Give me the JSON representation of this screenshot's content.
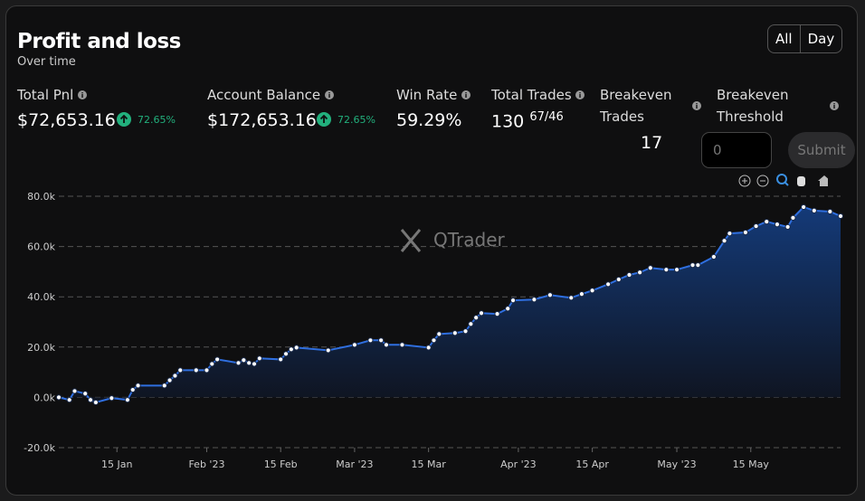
{
  "header": {
    "title": "Profit and loss",
    "subtitle": "Over time",
    "buttons": [
      "All",
      "Day"
    ]
  },
  "stats": [
    {
      "label": "Total Pnl",
      "value": "$72,653.16",
      "change": "72.65%"
    },
    {
      "label": "Account Balance",
      "value": "$172,653.16",
      "change": "72.65%"
    },
    {
      "label": "Win Rate",
      "value": "59.29%"
    },
    {
      "label": "Total Trades",
      "value": "130",
      "detail": "67/46"
    },
    {
      "label": "Breakeven Trades",
      "value": "17"
    },
    {
      "label": "Breakeven Threshold",
      "placeholder": "0",
      "button": "Submit"
    }
  ],
  "chart_data": {
    "type": "area",
    "watermark": "QTrader",
    "color": "#2f6fe0",
    "grid": true,
    "x": [
      "2023-01-04",
      "2023-01-06",
      "2023-01-07",
      "2023-01-09",
      "2023-01-10",
      "2023-01-11",
      "2023-01-14",
      "2023-01-17",
      "2023-01-18",
      "2023-01-19",
      "2023-01-24",
      "2023-01-25",
      "2023-01-26",
      "2023-01-27",
      "2023-01-30",
      "2023-02-01",
      "2023-02-02",
      "2023-02-03",
      "2023-02-07",
      "2023-02-08",
      "2023-02-09",
      "2023-02-10",
      "2023-02-11",
      "2023-02-15",
      "2023-02-16",
      "2023-02-17",
      "2023-02-18",
      "2023-02-24",
      "2023-03-01",
      "2023-03-04",
      "2023-03-06",
      "2023-03-07",
      "2023-03-10",
      "2023-03-15",
      "2023-03-16",
      "2023-03-17",
      "2023-03-20",
      "2023-03-22",
      "2023-03-23",
      "2023-03-24",
      "2023-03-25",
      "2023-03-28",
      "2023-03-30",
      "2023-03-31",
      "2023-04-04",
      "2023-04-07",
      "2023-04-11",
      "2023-04-13",
      "2023-04-15",
      "2023-04-18",
      "2023-04-20",
      "2023-04-22",
      "2023-04-24",
      "2023-04-26",
      "2023-04-29",
      "2023-05-01",
      "2023-05-04",
      "2023-05-05",
      "2023-05-08",
      "2023-05-10",
      "2023-05-11",
      "2023-05-14",
      "2023-05-16",
      "2023-05-18",
      "2023-05-20",
      "2023-05-22",
      "2023-05-23",
      "2023-05-25",
      "2023-05-27",
      "2023-05-30",
      "2023-06-01"
    ],
    "values": [
      0,
      -1000,
      2500,
      1500,
      -1000,
      -2000,
      -300,
      -1000,
      3000,
      4700,
      4700,
      6800,
      8600,
      10800,
      10800,
      10800,
      13300,
      15100,
      13700,
      14800,
      13700,
      13300,
      15500,
      15100,
      17300,
      19100,
      19800,
      18700,
      20900,
      22700,
      22700,
      20900,
      20900,
      19800,
      22700,
      25200,
      25600,
      26300,
      29200,
      31700,
      33500,
      33200,
      35300,
      38600,
      38900,
      40700,
      39600,
      41100,
      42500,
      45000,
      46900,
      48700,
      49700,
      51500,
      50800,
      50800,
      52600,
      52600,
      55900,
      62300,
      65200,
      65600,
      68100,
      69900,
      68800,
      67800,
      71400,
      75700,
      74300,
      73900,
      72100
    ],
    "xlim": [
      "2023-01-04",
      "2023-06-01"
    ],
    "xticks": [
      {
        "value": "2023-01-15",
        "label": "15 Jan"
      },
      {
        "value": "2023-02-01",
        "label": "Feb '23"
      },
      {
        "value": "2023-02-15",
        "label": "15 Feb"
      },
      {
        "value": "2023-03-01",
        "label": "Mar '23"
      },
      {
        "value": "2023-03-15",
        "label": "15 Mar"
      },
      {
        "value": "2023-04-01",
        "label": "Apr '23"
      },
      {
        "value": "2023-04-15",
        "label": "15 Apr"
      },
      {
        "value": "2023-05-01",
        "label": "May '23"
      },
      {
        "value": "2023-05-15",
        "label": "15 May"
      }
    ],
    "ylim": [
      -20000,
      80000
    ],
    "yticks": [
      {
        "value": -20000,
        "label": "-20.0k"
      },
      {
        "value": 0,
        "label": "0.0k"
      },
      {
        "value": 20000,
        "label": "20.0k"
      },
      {
        "value": 40000,
        "label": "40.0k"
      },
      {
        "value": 60000,
        "label": "60.0k"
      },
      {
        "value": 80000,
        "label": "80.0k"
      }
    ]
  }
}
